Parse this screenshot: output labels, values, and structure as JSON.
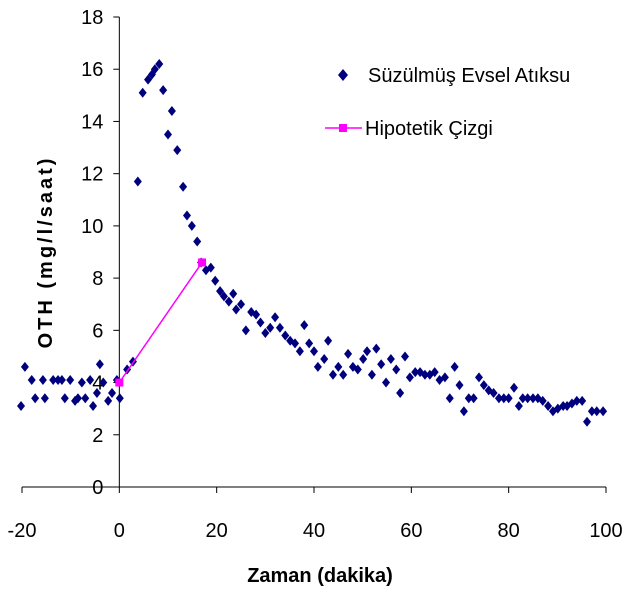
{
  "chart_data": {
    "type": "scatter",
    "x_label": "Zaman (dakika)",
    "y_label": "OTH  (mg/l/saat)",
    "xlim": [
      -20,
      100
    ],
    "xticks": [
      -20,
      0,
      20,
      40,
      60,
      80,
      100
    ],
    "ylim": [
      0,
      18
    ],
    "yticks": [
      0,
      2,
      4,
      6,
      8,
      10,
      12,
      14,
      16,
      18
    ],
    "grid": false,
    "legend": "top-right",
    "series": [
      {
        "name": "Süzülmüş Evsel Atıksu",
        "color": "#00007f",
        "marker": "diamond",
        "x": [
          -20.2,
          -19.4,
          -18,
          -17.3,
          -15.7,
          -15.3,
          -13.6,
          -12.6,
          -11.8,
          -11.2,
          -10.1,
          -9.1,
          -8.5,
          -7.7,
          -7.0,
          -6.0,
          -5.4,
          -4.6,
          -4.0,
          -3.3,
          -2.3,
          -1.5,
          -0.5,
          0.1,
          1.6,
          2.8,
          3.8,
          4.8,
          5.9,
          6.7,
          7.3,
          8.2,
          9.0,
          10.0,
          10.8,
          11.9,
          13.1,
          13.9,
          14.9,
          16.0,
          16.8,
          17.8,
          18.8,
          19.7,
          20.7,
          21.5,
          22.5,
          23.4,
          24.0,
          25.0,
          26.0,
          27.1,
          28.1,
          29.0,
          30.0,
          31.0,
          32.0,
          33.0,
          34.1,
          35.1,
          36.1,
          37.1,
          38.0,
          39.0,
          40.0,
          40.8,
          42.1,
          42.9,
          43.9,
          45.0,
          46.0,
          47.0,
          48.0,
          49.0,
          50.1,
          50.9,
          51.9,
          52.8,
          53.8,
          54.8,
          55.8,
          56.9,
          57.7,
          58.7,
          59.7,
          60.8,
          61.8,
          62.8,
          63.8,
          64.8,
          65.8,
          66.9,
          67.9,
          68.9,
          69.9,
          70.8,
          71.8,
          72.8,
          73.9,
          74.9,
          75.9,
          76.9,
          78.0,
          79.0,
          80.0,
          81.1,
          82.1,
          82.9,
          83.9,
          85.0,
          86.0,
          87.0,
          88.1,
          89.1,
          90.1,
          91.2,
          92.0,
          93.0,
          94.0,
          95.1,
          96.1,
          97.1,
          98.1,
          99.4
        ],
        "values": [
          3.1,
          4.6,
          4.1,
          3.4,
          4.1,
          3.4,
          4.1,
          4.1,
          4.1,
          3.4,
          4.1,
          3.3,
          3.4,
          4.0,
          3.4,
          4.1,
          3.1,
          3.6,
          4.7,
          4.0,
          3.3,
          3.6,
          4.1,
          3.4,
          4.5,
          4.8,
          11.7,
          15.1,
          15.6,
          15.8,
          16.0,
          16.2,
          15.2,
          13.5,
          14.4,
          12.9,
          11.5,
          10.4,
          10.0,
          9.4,
          8.6,
          8.3,
          8.4,
          7.9,
          7.5,
          7.3,
          7.1,
          7.4,
          6.8,
          7.0,
          6.0,
          6.7,
          6.6,
          6.3,
          5.9,
          6.1,
          6.5,
          6.1,
          5.8,
          5.6,
          5.5,
          5.2,
          6.2,
          5.5,
          5.2,
          4.6,
          4.9,
          5.6,
          4.3,
          4.6,
          4.3,
          5.1,
          4.6,
          4.5,
          4.9,
          5.2,
          4.3,
          5.3,
          4.7,
          4.0,
          4.9,
          4.5,
          3.6,
          5.0,
          4.2,
          4.4,
          4.4,
          4.3,
          4.3,
          4.4,
          4.1,
          4.2,
          3.4,
          4.6,
          3.9,
          2.9,
          3.4,
          3.4,
          4.2,
          3.9,
          3.7,
          3.6,
          3.4,
          3.4,
          3.4,
          3.8,
          3.1,
          3.4,
          3.4,
          3.4,
          3.4,
          3.3,
          3.1,
          2.9,
          3.0,
          3.1,
          3.1,
          3.2,
          3.3,
          3.3,
          2.5,
          2.9,
          2.9,
          2.9
        ]
      },
      {
        "name": "Hipotetik Çizgi",
        "color": "#ff00ff",
        "marker": "square",
        "line": true,
        "x": [
          0,
          17
        ],
        "values": [
          4.0,
          8.6
        ]
      }
    ]
  }
}
